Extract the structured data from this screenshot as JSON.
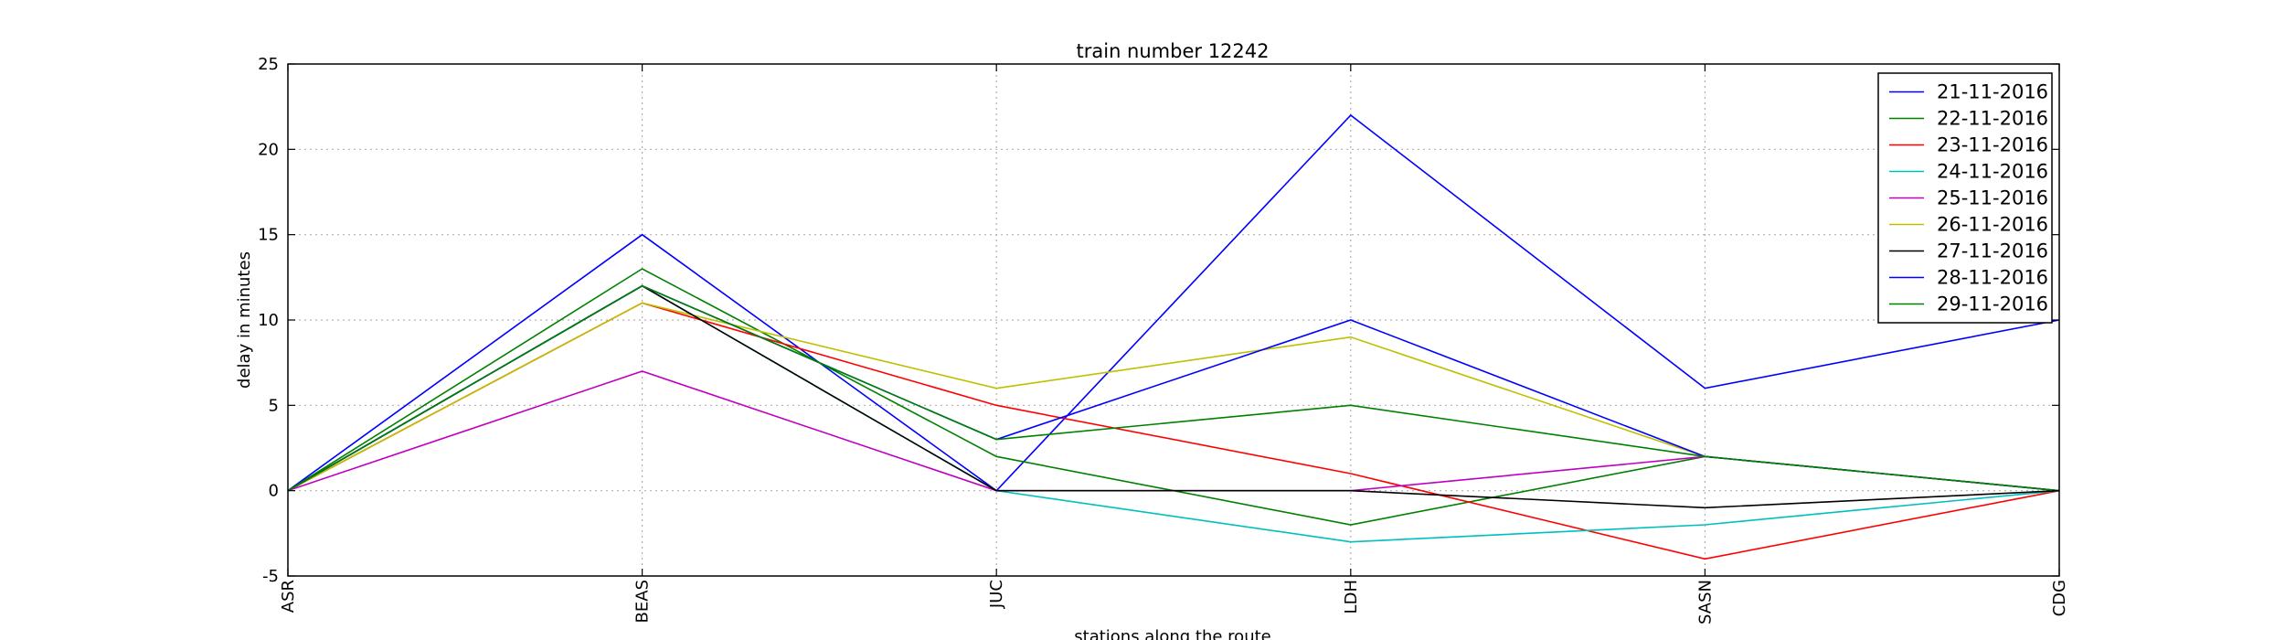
{
  "chart_data": {
    "type": "line",
    "title": "train number 12242",
    "xlabel": "stations along the route",
    "ylabel": "delay in minutes",
    "categories": [
      "ASR",
      "BEAS",
      "JUC",
      "LDH",
      "SASN",
      "CDG"
    ],
    "ylim": [
      -5,
      25
    ],
    "yticks": [
      -5,
      0,
      5,
      10,
      15,
      20,
      25
    ],
    "grid": true,
    "legend_position": "top-right",
    "series": [
      {
        "name": "21-11-2016",
        "color": "#0000ff",
        "values": [
          0,
          15,
          0,
          22,
          6,
          10
        ]
      },
      {
        "name": "22-11-2016",
        "color": "#008000",
        "values": [
          0,
          13,
          2,
          -2,
          2,
          0
        ]
      },
      {
        "name": "23-11-2016",
        "color": "#ff0000",
        "values": [
          0,
          11,
          5,
          1,
          -4,
          0
        ]
      },
      {
        "name": "24-11-2016",
        "color": "#00bfbf",
        "values": [
          0,
          12,
          0,
          -3,
          -2,
          0
        ]
      },
      {
        "name": "25-11-2016",
        "color": "#bf00bf",
        "values": [
          0,
          7,
          0,
          0,
          2,
          0
        ]
      },
      {
        "name": "26-11-2016",
        "color": "#bfbf00",
        "values": [
          0,
          11,
          6,
          9,
          2,
          0
        ]
      },
      {
        "name": "27-11-2016",
        "color": "#000000",
        "values": [
          0,
          12,
          0,
          0,
          -1,
          0
        ]
      },
      {
        "name": "28-11-2016",
        "color": "#0000ff",
        "values": [
          0,
          12,
          3,
          10,
          2,
          0
        ]
      },
      {
        "name": "29-11-2016",
        "color": "#008000",
        "values": [
          0,
          12,
          3,
          5,
          2,
          0
        ]
      }
    ]
  }
}
